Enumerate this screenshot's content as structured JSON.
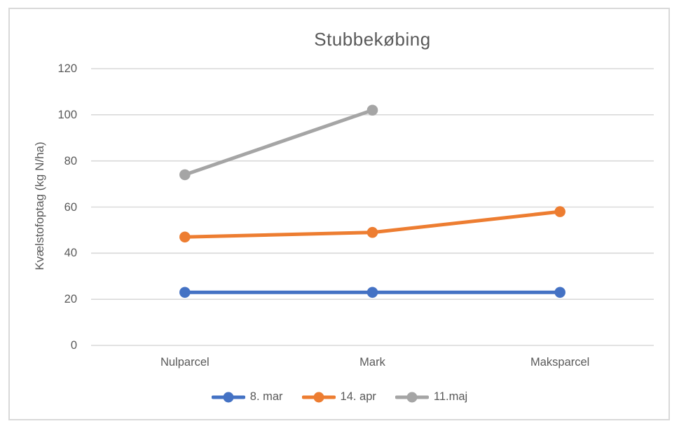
{
  "chart_data": {
    "type": "line",
    "title": "Stubbekøbing",
    "categories": [
      "Nulparcel",
      "Mark",
      "Maksparcel"
    ],
    "series": [
      {
        "name": "8. mar",
        "color": "#4472c4",
        "values": [
          23,
          23,
          23
        ]
      },
      {
        "name": "14. apr",
        "color": "#ed7d31",
        "values": [
          47,
          49,
          58
        ]
      },
      {
        "name": "11.maj",
        "color": "#a5a5a5",
        "values": [
          74,
          102,
          null
        ]
      }
    ],
    "xlabel": "",
    "ylabel": "Kvælstofoptag (kg N/ha)",
    "ylim": [
      0,
      120
    ],
    "yticks": [
      0,
      20,
      40,
      60,
      80,
      100,
      120
    ],
    "grid": "horizontal",
    "gridline_color": "#d9d9d9",
    "frame_color": "#d9d9d9",
    "text_color": "#595959",
    "legend_position": "bottom"
  }
}
